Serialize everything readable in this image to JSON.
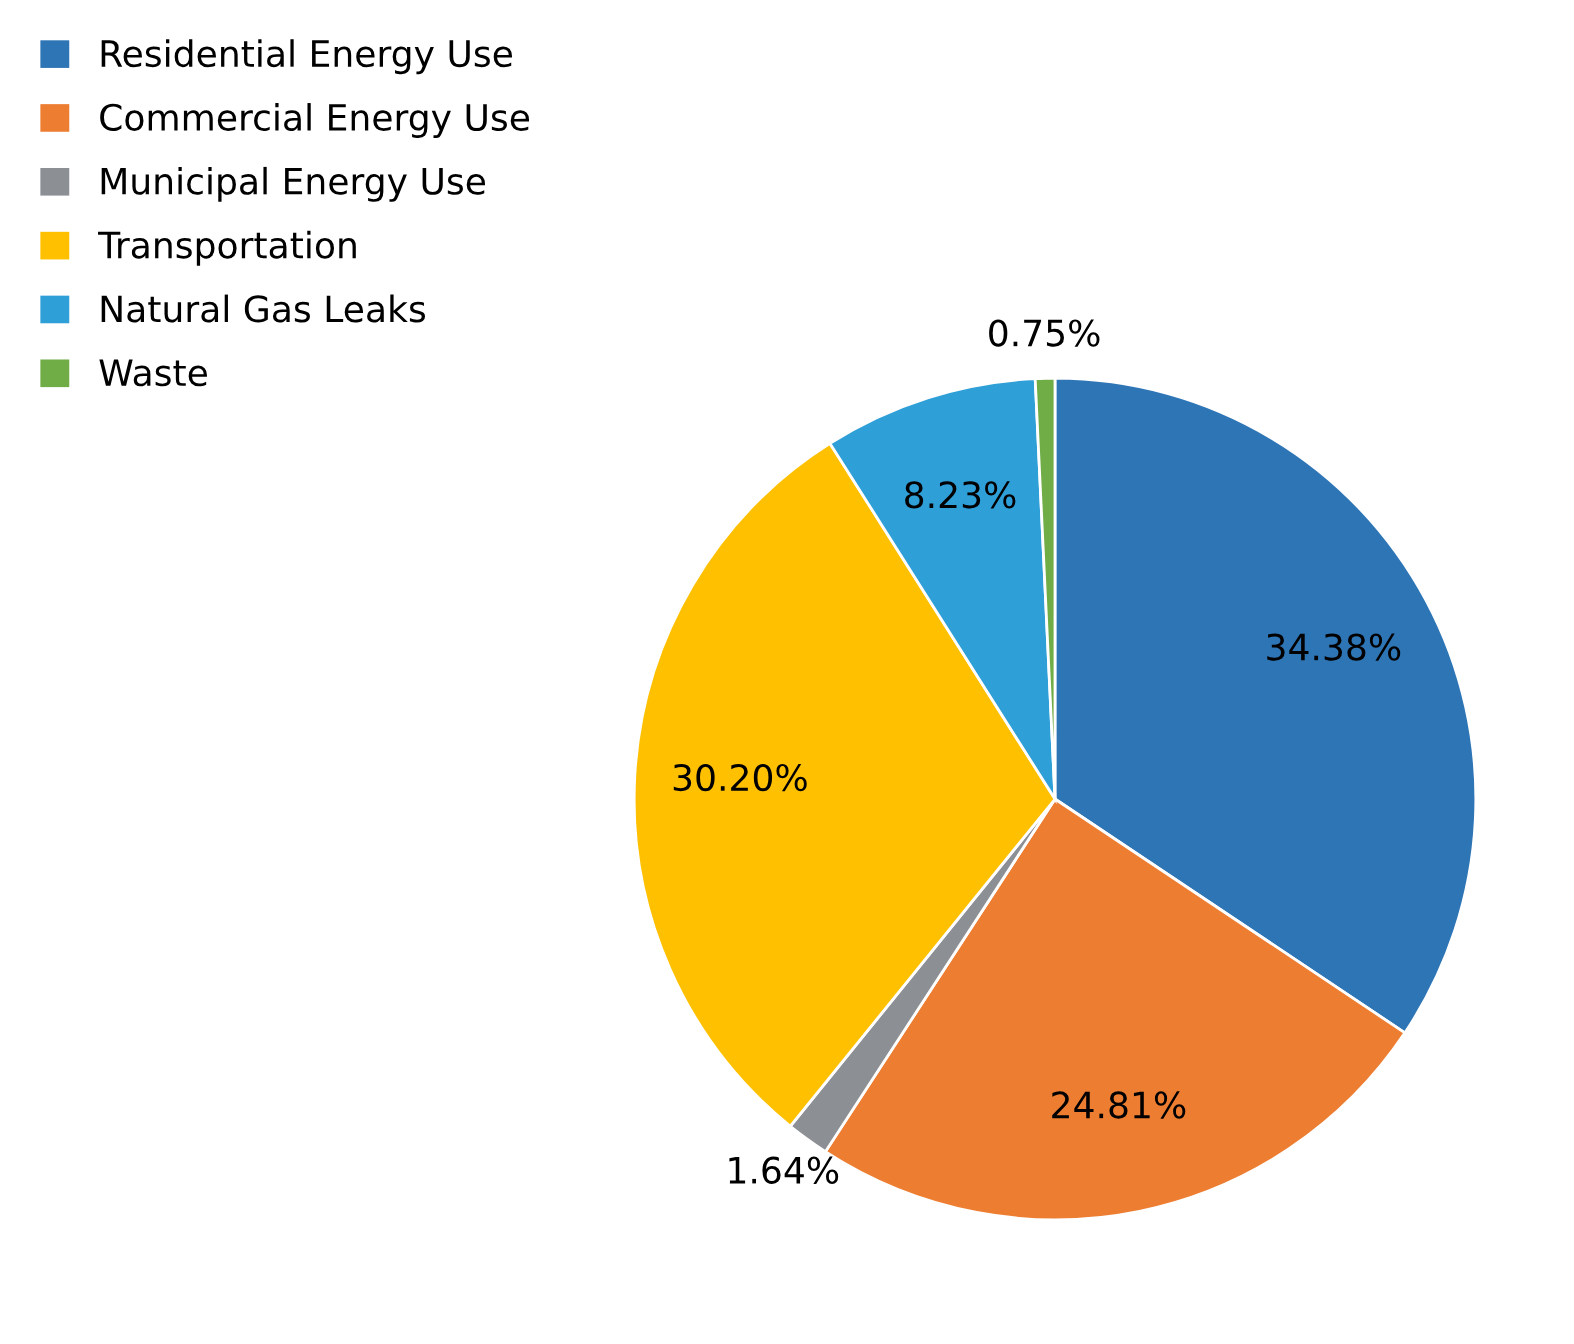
{
  "chart_data": {
    "type": "pie",
    "categories": [
      "Residential Energy Use",
      "Commercial Energy Use",
      "Municipal Energy Use",
      "Transportation",
      "Natural Gas Leaks",
      "Waste"
    ],
    "values": [
      34.38,
      24.81,
      1.64,
      30.2,
      8.23,
      0.75
    ],
    "value_labels": [
      "34.38%",
      "24.81%",
      "1.64%",
      "30.20%",
      "8.23%",
      "0.75%"
    ],
    "colors": [
      "#2e75b6",
      "#ed7d31",
      "#8c8f94",
      "#ffc000",
      "#2f9fd8",
      "#70ad47"
    ],
    "legend": "top left"
  }
}
